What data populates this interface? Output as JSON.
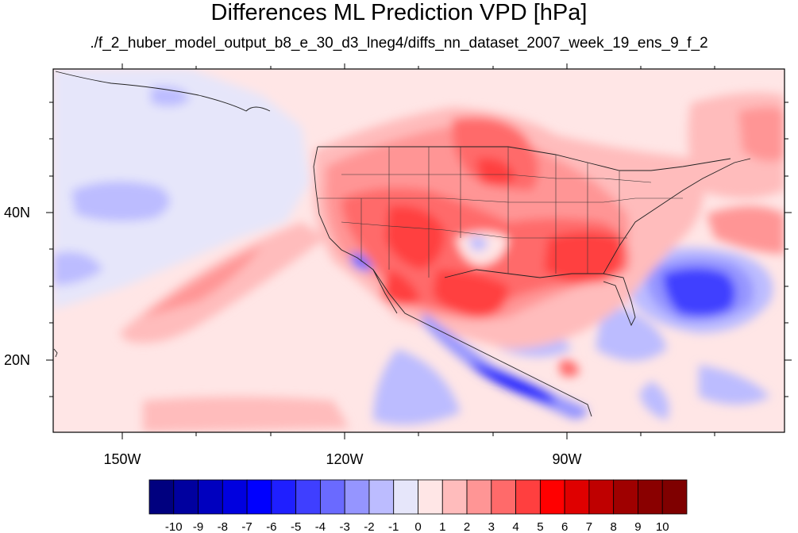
{
  "title": "Differences ML Prediction VPD [hPa]",
  "subtitle": "./f_2_huber_model_output_b8_e_30_d3_lneg4/diffs_nn_dataset_2007_week_19_ens_9_f_2",
  "map": {
    "lon_labels": [
      "150W",
      "120W",
      "90W"
    ],
    "lat_labels": [
      "40N",
      "20N"
    ]
  },
  "colorbar": {
    "labels": [
      "-10",
      "-9",
      "-8",
      "-7",
      "-6",
      "-5",
      "-4",
      "-3",
      "-2",
      "-1",
      "0",
      "1",
      "2",
      "3",
      "4",
      "5",
      "6",
      "7",
      "8",
      "9",
      "10"
    ],
    "colors": [
      "#00007f",
      "#00009f",
      "#0000bf",
      "#0000df",
      "#0000ff",
      "#1f1fff",
      "#3f3fff",
      "#6a6aff",
      "#9595ff",
      "#bcbcff",
      "#e6e6fa",
      "#ffe6e6",
      "#ffbcbc",
      "#ff9595",
      "#ff6a6a",
      "#ff3f3f",
      "#ff0000",
      "#df0000",
      "#bf0000",
      "#9f0000",
      "#8a0000",
      "#7f0000"
    ]
  }
}
